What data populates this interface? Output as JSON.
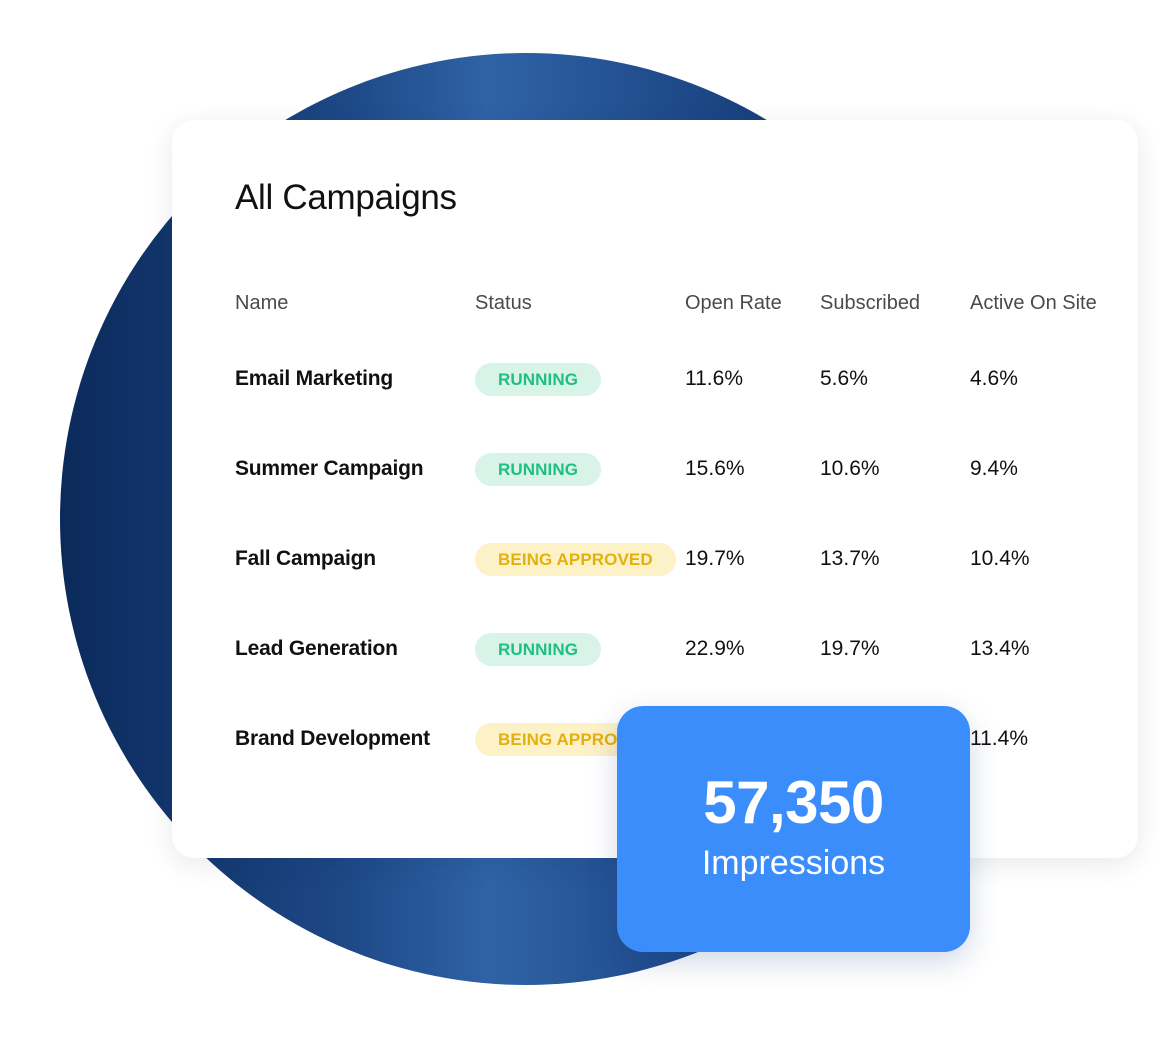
{
  "title": "All Campaigns",
  "columns": {
    "name": "Name",
    "status": "Status",
    "open_rate": "Open Rate",
    "subscribed": "Subscribed",
    "active_on_site": "Active On Site"
  },
  "rows": [
    {
      "name": "Email Marketing",
      "status": "RUNNING",
      "open_rate": "11.6%",
      "subscribed": "5.6%",
      "active_on_site": "4.6%"
    },
    {
      "name": "Summer Campaign",
      "status": "RUNNING",
      "open_rate": "15.6%",
      "subscribed": "10.6%",
      "active_on_site": "9.4%"
    },
    {
      "name": "Fall Campaign",
      "status": "BEING APPROVED",
      "open_rate": "19.7%",
      "subscribed": "13.7%",
      "active_on_site": "10.4%"
    },
    {
      "name": "Lead Generation",
      "status": "RUNNING",
      "open_rate": "22.9%",
      "subscribed": "19.7%",
      "active_on_site": "13.4%"
    },
    {
      "name": "Brand Development",
      "status": "BEING APPROVED",
      "open_rate": "",
      "subscribed": "",
      "active_on_site": "11.4%"
    }
  ],
  "status_colors": {
    "running_bg": "#d8f3e8",
    "running_text": "#1fbf83",
    "approved_bg": "#fdf1c8",
    "approved_text": "#e4b10c"
  },
  "stat": {
    "value": "57,350",
    "label": "Impressions",
    "color": "#3a8dfb"
  },
  "background_colors": [
    "#0b2a5b",
    "#2f63a6"
  ]
}
